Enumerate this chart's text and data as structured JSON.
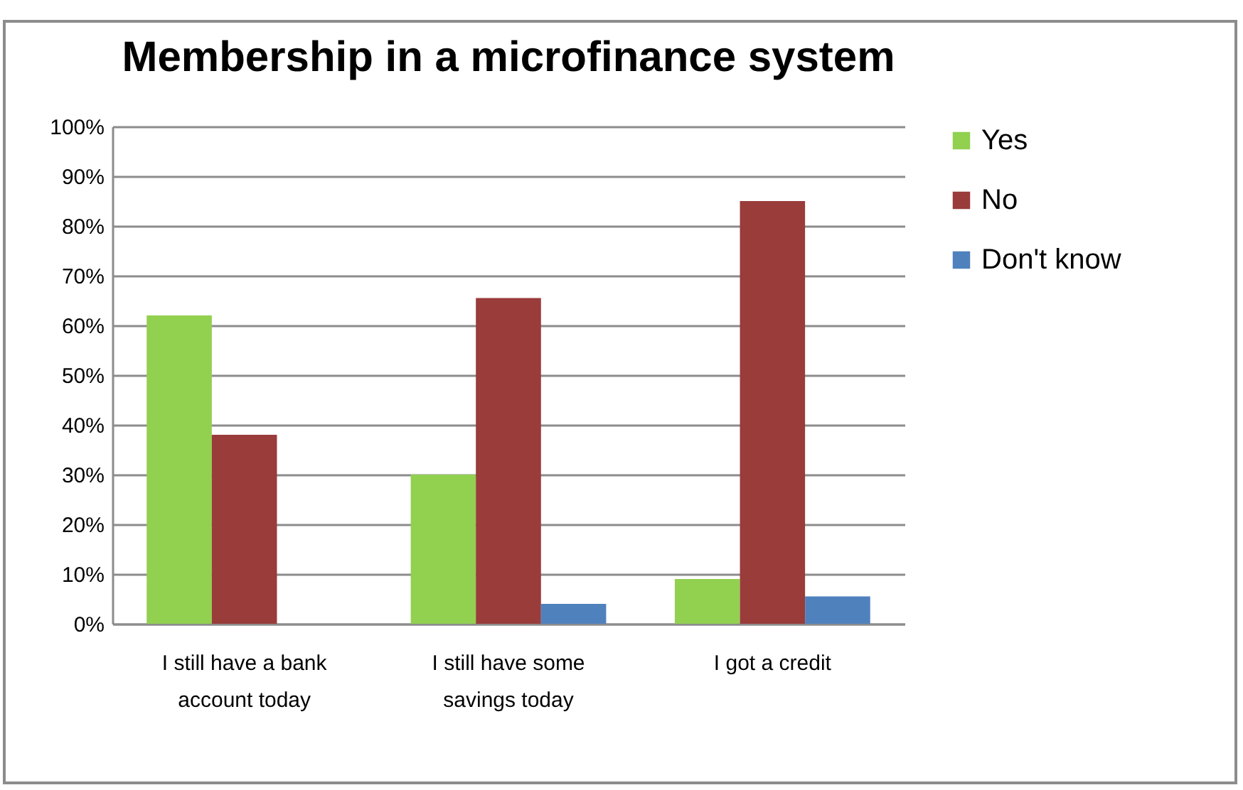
{
  "chart_data": {
    "type": "bar",
    "title": "Membership in a microfinance system",
    "categories": [
      "I still have a bank account today",
      "I still have some savings today",
      "I got a credit"
    ],
    "series": [
      {
        "name": "Yes",
        "color": "#92d050",
        "values": [
          62,
          30,
          9
        ]
      },
      {
        "name": "No",
        "color": "#993c3a",
        "values": [
          38,
          65.5,
          85
        ]
      },
      {
        "name": "Don't know",
        "color": "#4f81bd",
        "values": [
          null,
          4,
          5.5
        ]
      }
    ],
    "ylim": [
      0,
      100
    ],
    "yticks": [
      {
        "value": 0,
        "label": "0%"
      },
      {
        "value": 10,
        "label": "10%"
      },
      {
        "value": 20,
        "label": "20%"
      },
      {
        "value": 30,
        "label": "30%"
      },
      {
        "value": 40,
        "label": "40%"
      },
      {
        "value": 50,
        "label": "50%"
      },
      {
        "value": 60,
        "label": "60%"
      },
      {
        "value": 70,
        "label": "70%"
      },
      {
        "value": 80,
        "label": "80%"
      },
      {
        "value": 90,
        "label": "90%"
      },
      {
        "value": 100,
        "label": "100%"
      }
    ],
    "grid": "y",
    "legend": "right"
  }
}
